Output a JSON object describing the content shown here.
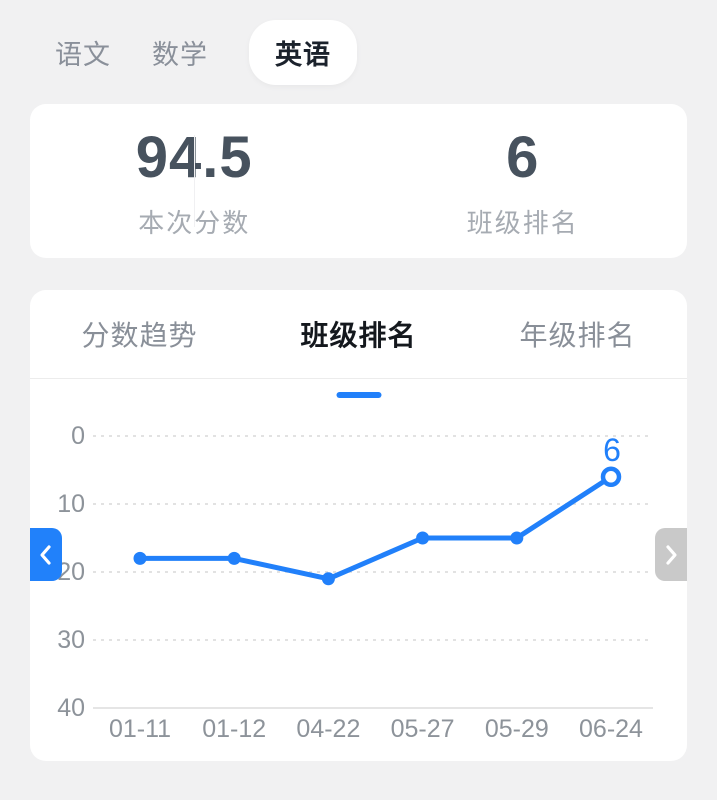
{
  "subject_tabs": {
    "items": [
      {
        "label": "语文",
        "active": false
      },
      {
        "label": "数学",
        "active": false
      },
      {
        "label": "英语",
        "active": true
      }
    ]
  },
  "summary": {
    "score_value": "94.5",
    "score_label": "本次分数",
    "rank_value": "6",
    "rank_label": "班级排名"
  },
  "trend_tabs": {
    "items": [
      {
        "label": "分数趋势",
        "active": false
      },
      {
        "label": "班级排名",
        "active": true
      },
      {
        "label": "年级排名",
        "active": false
      }
    ]
  },
  "chart_data": {
    "type": "line",
    "x": [
      "01-11",
      "01-12",
      "04-22",
      "05-27",
      "05-29",
      "06-24"
    ],
    "series": [
      {
        "name": "班级排名",
        "values": [
          18,
          18,
          21,
          15,
          15,
          6
        ]
      }
    ],
    "y_ticks": [
      0,
      10,
      20,
      30,
      40
    ],
    "ylim": [
      0,
      40
    ],
    "y_axis_inverted": true,
    "grid": "horizontal-dotted",
    "legend": "none",
    "last_point_label": "6",
    "line_color": "#2180fa"
  },
  "nav": {
    "prev_icon": "chevron-left",
    "next_icon": "chevron-right"
  },
  "colors": {
    "accent_blue": "#2180fa",
    "number_dark": "#47525e",
    "label_gray": "#a6abb2",
    "tick_gray": "#8d939a",
    "grid_gray": "#d9d9d9",
    "axis_gray": "#e5e5e5",
    "next_button_gray": "#c9c9c9",
    "background": "#f1f1f2",
    "card": "#ffffff"
  }
}
